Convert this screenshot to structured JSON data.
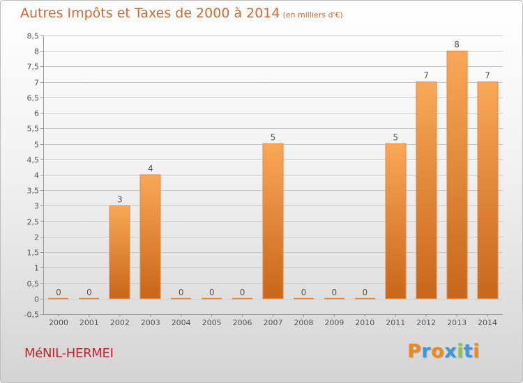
{
  "title": "Autres Impôts et Taxes de 2000 à 2014",
  "title_unit": "(en milliers d'€)",
  "commune": "MéNIL-HERMEI",
  "logo": {
    "text": "Proxiti",
    "letter_colors": [
      "#f08a1c",
      "#3a9ad9",
      "#f08a1c",
      "#3a9ad9",
      "#8cc63f",
      "#3a9ad9",
      "#f08a1c"
    ]
  },
  "colors": {
    "bar_top": "#f8a858",
    "bar_bottom": "#c8661a",
    "bar_edge": "#e8863a",
    "title": "#d0682d",
    "commune": "#c8202f",
    "grid": "#c9c9c9",
    "axis": "#999999",
    "label": "#555555"
  },
  "chart_data": {
    "type": "bar",
    "title": "Autres Impôts et Taxes de 2000 à 2014",
    "xlabel": "",
    "ylabel": "",
    "categories": [
      "2000",
      "2001",
      "2002",
      "2003",
      "2004",
      "2005",
      "2006",
      "2007",
      "2008",
      "2009",
      "2010",
      "2011",
      "2012",
      "2013",
      "2014"
    ],
    "values": [
      0,
      0,
      3,
      4,
      0,
      0,
      0,
      5,
      0,
      0,
      0,
      5,
      7,
      8,
      7
    ],
    "data_labels": [
      "0",
      "0",
      "3",
      "4",
      "0",
      "0",
      "0",
      "5",
      "0",
      "0",
      "0",
      "5",
      "7",
      "8",
      "7"
    ],
    "ylim": [
      -0.5,
      8.5
    ],
    "yticks": [
      -0.5,
      0,
      0.5,
      1,
      1.5,
      2,
      2.5,
      3,
      3.5,
      4,
      4.5,
      5,
      5.5,
      6,
      6.5,
      7,
      7.5,
      8,
      8.5
    ],
    "ytick_labels": [
      "-0,5",
      "0",
      "0,5",
      "1",
      "1,5",
      "2",
      "2,5",
      "3",
      "3,5",
      "4",
      "4,5",
      "5",
      "5,5",
      "6",
      "6,5",
      "7",
      "7,5",
      "8",
      "8,5"
    ],
    "grid": true,
    "legend": "none"
  }
}
